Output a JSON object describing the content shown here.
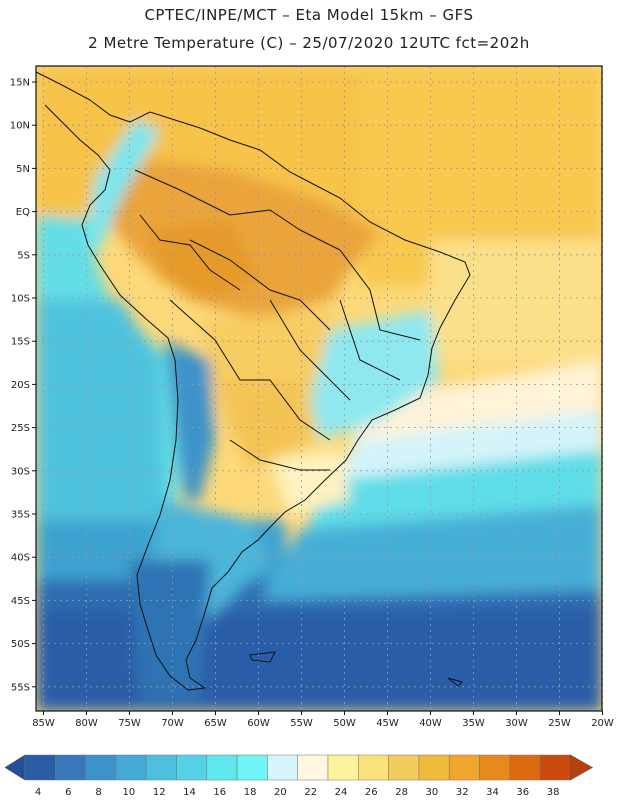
{
  "header": {
    "title_line1": "CPTEC/INPE/MCT –  Eta Model 15km – GFS",
    "title_line2": "2 Metre Temperature (C) – 25/07/2020 12UTC fct=202h"
  },
  "map": {
    "lat_labels": [
      "15N",
      "10N",
      "5N",
      "EQ",
      "5S",
      "10S",
      "15S",
      "20S",
      "25S",
      "30S",
      "35S",
      "40S",
      "45S",
      "50S",
      "55S"
    ],
    "lon_labels": [
      "85W",
      "80W",
      "75W",
      "70W",
      "65W",
      "60W",
      "55W",
      "50W",
      "45W",
      "40W",
      "35W",
      "30W",
      "25W",
      "20W"
    ],
    "gridline_color": "#9a9a9a"
  },
  "colorbar": {
    "ticks": [
      "4",
      "6",
      "8",
      "10",
      "12",
      "14",
      "16",
      "18",
      "20",
      "22",
      "24",
      "26",
      "28",
      "30",
      "32",
      "34",
      "36",
      "38"
    ],
    "colors": [
      "#2a5da8",
      "#3678b9",
      "#3d93c9",
      "#45a9d6",
      "#4ec0df",
      "#55d2e6",
      "#5ee7ec",
      "#6ff5f5",
      "#d6f6fb",
      "#fff7df",
      "#fdf39a",
      "#fae17a",
      "#f4cc5c",
      "#efbb3d",
      "#f0a62a",
      "#e98a1c",
      "#dd6a10",
      "#c94a0a"
    ],
    "left_arrow_color": "#234f9a",
    "right_arrow_color": "#b8400a"
  }
}
